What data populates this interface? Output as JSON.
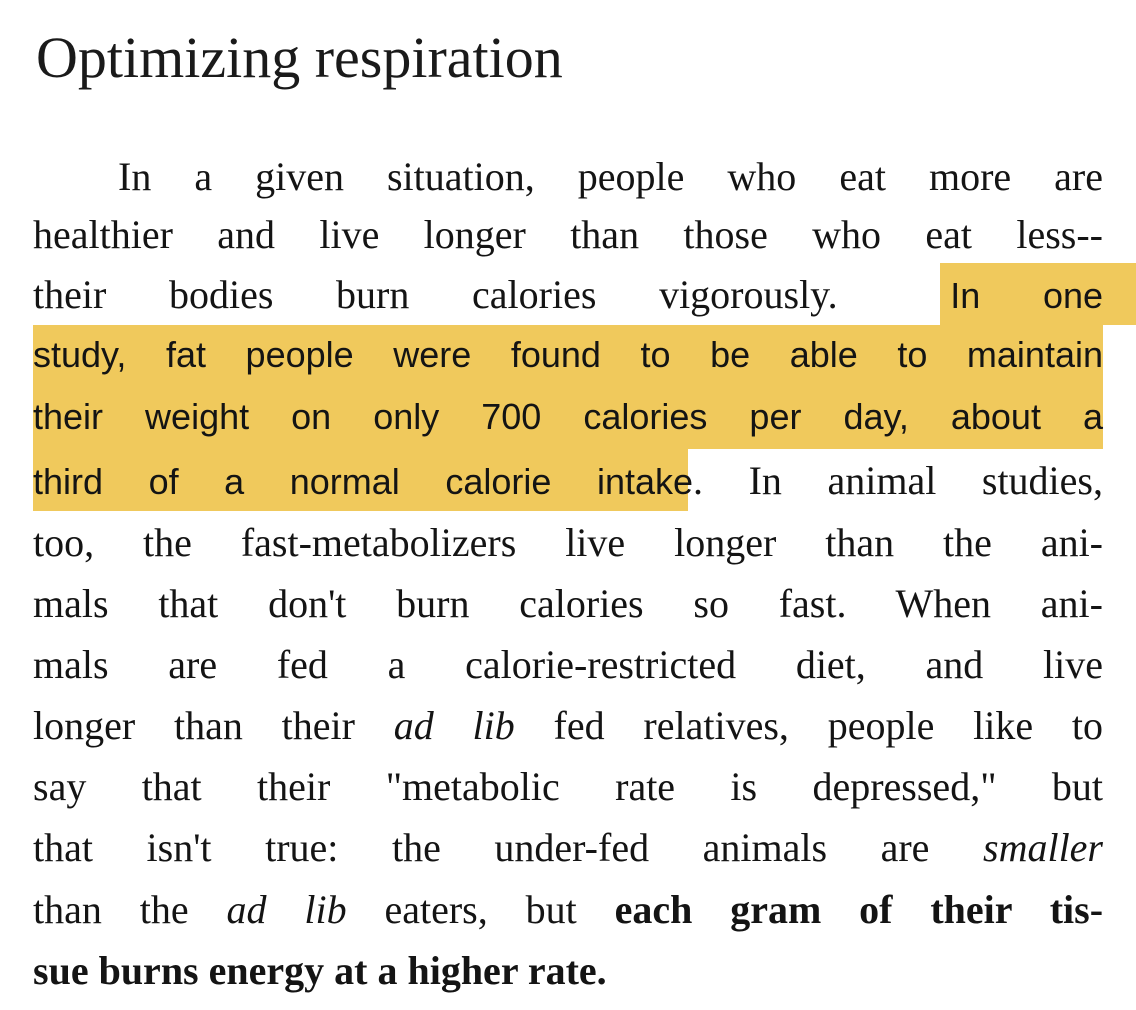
{
  "heading": "Optimizing respiration",
  "highlight_color": "#f0c95c",
  "paragraph": {
    "l1": "In a given situation, people who eat more are",
    "l2": "healthier and live longer than those who eat less--",
    "l3a": "their bodies burn calories vigorously.",
    "l3b": "In one",
    "l4": "study, fat people were found to be able to maintain",
    "l5": "their weight on only 700 calories per day, about a",
    "l6a": "third of a normal calorie intake",
    "l6b": ".  In animal studies,",
    "l7": "too, the fast-metabolizers live longer than the ani-",
    "l8": "mals that don't burn calories so fast.  When ani-",
    "l9": "mals are fed a calorie-restricted diet, and live",
    "l10a": "longer than their ",
    "l10b": "ad lib",
    "l10c": " fed relatives, people like to",
    "l11": "say that their \"metabolic rate is depressed,\" but",
    "l12a": "that isn't true:  the under-fed animals are ",
    "l12b": "smaller",
    "l13a": "than the ",
    "l13b": "ad lib",
    "l13c": " eaters, but ",
    "l13d": "each gram of their tis-",
    "l14": "sue burns energy at a higher rate."
  }
}
